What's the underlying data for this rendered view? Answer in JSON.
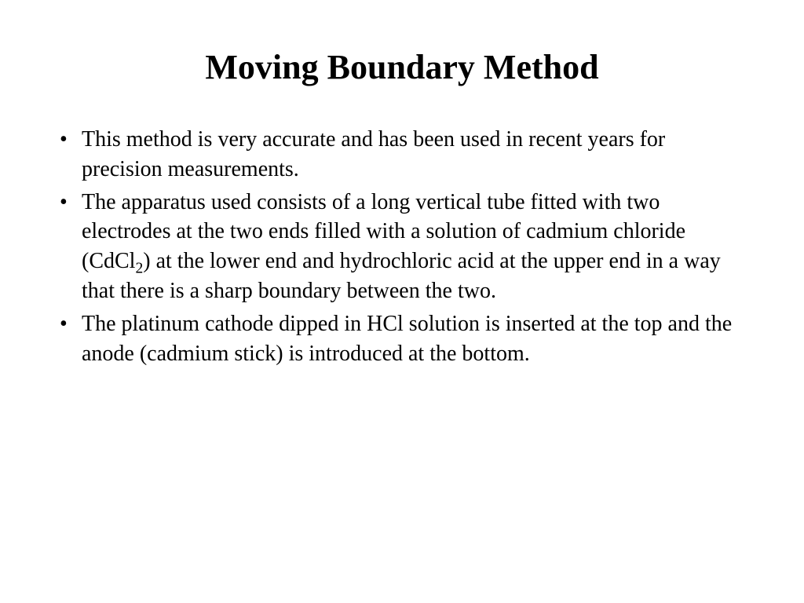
{
  "slide": {
    "title": "Moving Boundary Method",
    "title_fontsize": 44,
    "title_fontweight": "bold",
    "title_color": "#000000",
    "background_color": "#ffffff",
    "body_fontsize": 28,
    "body_color": "#000000",
    "font_family": "Times New Roman",
    "bullets": [
      {
        "text": "This method is very accurate and has been used in recent years for precision measurements."
      },
      {
        "text_before": "The apparatus used consists of a long vertical tube fitted with two electrodes at the two ends filled with a solution of cadmium chloride (CdCl",
        "sub": "2",
        "text_after": ") at the lower end and hydrochloric acid at the upper end in a way that there is a sharp boundary between the two."
      },
      {
        "text": "The platinum cathode dipped in HCl solution is inserted at the top and the anode (cadmium stick) is introduced at the bottom."
      }
    ]
  }
}
